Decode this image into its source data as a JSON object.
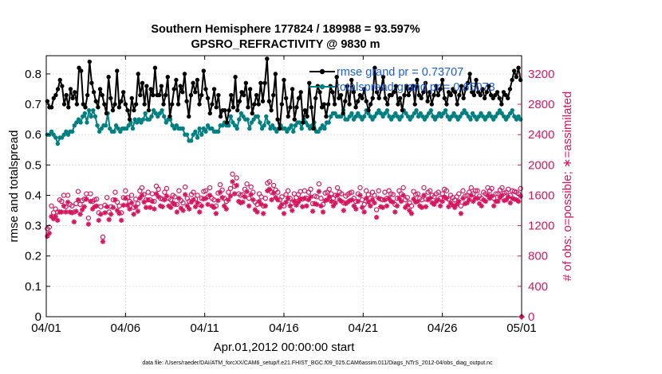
{
  "chart_data": {
    "type": "line",
    "title_line1": "Southern Hemisphere 177824 / 189988 = 93.597%",
    "title_line2": "GPSRO_REFRACTIVITY @ 9830 m",
    "xlabel": "Apr.01,2012 00:00:00 start",
    "ylabel_left": "rmse and totalspread",
    "ylabel_right": "# of obs: o=possible; ∗=assimilated",
    "footnote": "data file: /Users/raeder/DAI/ATM_forcXX/CAM6_setup/f.e21.FHIST_BGC.f09_025.CAM6assim.011/Diags_NTrS_2012-04/obs_diag_output.nc",
    "xlim": [
      0,
      30
    ],
    "ylim_left": [
      0,
      0.86
    ],
    "ylim_right": [
      0,
      3440
    ],
    "x_ticks": [
      0,
      5,
      10,
      15,
      20,
      25,
      30
    ],
    "x_tick_labels": [
      "04/01",
      "04/06",
      "04/11",
      "04/16",
      "04/21",
      "04/26",
      "05/01"
    ],
    "yleft_ticks": [
      0,
      0.1,
      0.2,
      0.3,
      0.4,
      0.5,
      0.6,
      0.7,
      0.8
    ],
    "yleft_tick_labels": [
      "0",
      "0.1",
      "0.2",
      "0.3",
      "0.4",
      "0.5",
      "0.6",
      "0.7",
      "0.8"
    ],
    "yright_ticks": [
      0,
      400,
      800,
      1200,
      1600,
      2000,
      2400,
      2800,
      3200
    ],
    "yright_tick_labels": [
      "0",
      "400",
      "800",
      "1200",
      "1600",
      "2000",
      "2400",
      "2800",
      "3200"
    ],
    "grid": true,
    "legend_position": "top-right",
    "colors": {
      "rmse": "#000000",
      "spread": "#008080",
      "obs": "#d6175f"
    },
    "rmse": {
      "legend_label": "rmse grand pr = 0.73707",
      "values": [
        0.71,
        0.69,
        0.69,
        0.72,
        0.73,
        0.75,
        0.78,
        0.76,
        0.7,
        0.73,
        0.69,
        0.75,
        0.72,
        0.74,
        0.7,
        0.82,
        0.81,
        0.7,
        0.69,
        0.73,
        0.84,
        0.77,
        0.74,
        0.71,
        0.69,
        0.75,
        0.73,
        0.7,
        0.67,
        0.79,
        0.72,
        0.68,
        0.7,
        0.81,
        0.69,
        0.71,
        0.74,
        0.7,
        0.68,
        0.65,
        0.72,
        0.68,
        0.7,
        0.8,
        0.73,
        0.77,
        0.7,
        0.76,
        0.68,
        0.75,
        0.73,
        0.82,
        0.73,
        0.73,
        0.76,
        0.7,
        0.73,
        0.79,
        0.66,
        0.7,
        0.75,
        0.78,
        0.7,
        0.76,
        0.74,
        0.8,
        0.71,
        0.66,
        0.73,
        0.77,
        0.74,
        0.78,
        0.7,
        0.73,
        0.81,
        0.75,
        0.72,
        0.67,
        0.7,
        0.75,
        0.69,
        0.73,
        0.66,
        0.68,
        0.68,
        0.64,
        0.68,
        0.73,
        0.69,
        0.79,
        0.68,
        0.71,
        0.74,
        0.73,
        0.77,
        0.69,
        0.75,
        0.67,
        0.7,
        0.73,
        0.7,
        0.77,
        0.71,
        0.77,
        0.85,
        0.71,
        0.68,
        0.73,
        0.8,
        0.65,
        0.62,
        0.7,
        0.78,
        0.72,
        0.66,
        0.69,
        0.75,
        0.65,
        0.69,
        0.72,
        0.74,
        0.64,
        0.68,
        0.66,
        0.77,
        0.69,
        0.62,
        0.72,
        0.76,
        0.74,
        0.69,
        0.7,
        0.66,
        0.7,
        0.76,
        0.74,
        0.7,
        0.79,
        0.72,
        0.73,
        0.67,
        0.71,
        0.76,
        0.7,
        0.78,
        0.74,
        0.69,
        0.71,
        0.73,
        0.72,
        0.75,
        0.71,
        0.68,
        0.7,
        0.72,
        0.82,
        0.74,
        0.72,
        0.75,
        0.79,
        0.72,
        0.7,
        0.73,
        0.73,
        0.74,
        0.76,
        0.7,
        0.72,
        0.68,
        0.73,
        0.76,
        0.73,
        0.75,
        0.76,
        0.7,
        0.78,
        0.73,
        0.72,
        0.74,
        0.77,
        0.71,
        0.74,
        0.7,
        0.73,
        0.76,
        0.73,
        0.75,
        0.78,
        0.72,
        0.7,
        0.74,
        0.73,
        0.75,
        0.74,
        0.7,
        0.73,
        0.76,
        0.72,
        0.75,
        0.77,
        0.8,
        0.74,
        0.73,
        0.78,
        0.74,
        0.73,
        0.75,
        0.72,
        0.74,
        0.76,
        0.73,
        0.72,
        0.73,
        0.74,
        0.72,
        0.7,
        0.74,
        0.73,
        0.72,
        0.75,
        0.78,
        0.81,
        0.79,
        0.82,
        0.78
      ]
    },
    "spread": {
      "legend_label": "totalspread grand pr = 0.65073",
      "values": [
        0.6,
        0.6,
        0.61,
        0.6,
        0.59,
        0.57,
        0.59,
        0.59,
        0.6,
        0.61,
        0.6,
        0.61,
        0.61,
        0.63,
        0.64,
        0.65,
        0.64,
        0.66,
        0.67,
        0.64,
        0.68,
        0.66,
        0.68,
        0.66,
        0.63,
        0.61,
        0.62,
        0.63,
        0.63,
        0.67,
        0.62,
        0.61,
        0.61,
        0.63,
        0.62,
        0.61,
        0.62,
        0.62,
        0.62,
        0.63,
        0.64,
        0.62,
        0.65,
        0.64,
        0.65,
        0.64,
        0.65,
        0.67,
        0.65,
        0.65,
        0.66,
        0.68,
        0.67,
        0.66,
        0.67,
        0.68,
        0.66,
        0.64,
        0.65,
        0.65,
        0.63,
        0.62,
        0.63,
        0.62,
        0.62,
        0.62,
        0.6,
        0.6,
        0.58,
        0.58,
        0.6,
        0.61,
        0.59,
        0.62,
        0.6,
        0.62,
        0.61,
        0.63,
        0.62,
        0.62,
        0.61,
        0.61,
        0.61,
        0.63,
        0.63,
        0.64,
        0.63,
        0.63,
        0.66,
        0.64,
        0.63,
        0.62,
        0.65,
        0.67,
        0.66,
        0.65,
        0.65,
        0.62,
        0.64,
        0.65,
        0.66,
        0.66,
        0.64,
        0.62,
        0.63,
        0.66,
        0.64,
        0.62,
        0.63,
        0.62,
        0.61,
        0.62,
        0.63,
        0.62,
        0.62,
        0.61,
        0.62,
        0.63,
        0.61,
        0.63,
        0.64,
        0.64,
        0.62,
        0.65,
        0.64,
        0.63,
        0.62,
        0.63,
        0.64,
        0.61,
        0.61,
        0.62,
        0.63,
        0.62,
        0.64,
        0.64,
        0.66,
        0.67,
        0.67,
        0.66,
        0.66,
        0.66,
        0.68,
        0.65,
        0.65,
        0.66,
        0.67,
        0.65,
        0.66,
        0.67,
        0.66,
        0.65,
        0.66,
        0.68,
        0.67,
        0.66,
        0.65,
        0.66,
        0.67,
        0.68,
        0.67,
        0.66,
        0.67,
        0.68,
        0.66,
        0.65,
        0.66,
        0.67,
        0.66,
        0.65,
        0.66,
        0.68,
        0.67,
        0.66,
        0.65,
        0.66,
        0.67,
        0.68,
        0.66,
        0.67,
        0.66,
        0.65,
        0.66,
        0.67,
        0.68,
        0.66,
        0.65,
        0.66,
        0.67,
        0.66,
        0.67,
        0.68,
        0.66,
        0.65,
        0.66,
        0.67,
        0.66,
        0.65,
        0.66,
        0.67,
        0.68,
        0.67,
        0.66,
        0.65,
        0.67,
        0.66,
        0.65,
        0.66,
        0.67,
        0.66,
        0.65,
        0.66,
        0.67,
        0.66,
        0.65,
        0.66,
        0.67,
        0.68,
        0.67,
        0.66,
        0.65,
        0.66,
        0.67,
        0.68,
        0.66,
        0.65,
        0.66,
        0.65
      ]
    },
    "possible": {
      "values": [
        1160,
        1180,
        1460,
        1370,
        1420,
        1380,
        1540,
        1520,
        1600,
        1450,
        1600,
        1480,
        1460,
        1380,
        1490,
        1650,
        1480,
        1530,
        1550,
        1620,
        1300,
        1620,
        1520,
        1540,
        1550,
        1370,
        1450,
        1050,
        1470,
        1570,
        1380,
        1450,
        1540,
        1640,
        1510,
        1460,
        1370,
        1570,
        1660,
        1570,
        1520,
        1600,
        1440,
        1550,
        1490,
        1660,
        1700,
        1610,
        1540,
        1640,
        1540,
        1620,
        1520,
        1720,
        1680,
        1560,
        1550,
        1640,
        1690,
        1560,
        1540,
        1600,
        1580,
        1480,
        1660,
        1530,
        1500,
        1710,
        1560,
        1520,
        1610,
        1640,
        1550,
        1600,
        1480,
        1560,
        1650,
        1660,
        1580,
        1700,
        1560,
        1540,
        1460,
        1630,
        1740,
        1670,
        1560,
        1520,
        1640,
        1690,
        1880,
        1720,
        1830,
        1620,
        1600,
        1610,
        1680,
        1750,
        1560,
        1710,
        1640,
        1510,
        1480,
        1620,
        1580,
        1460,
        1560,
        1760,
        1780,
        1640,
        1730,
        1670,
        1640,
        1540,
        1580,
        1460,
        1610,
        1660,
        1560,
        1500,
        1620,
        1570,
        1610,
        1650,
        1550,
        1660,
        1560,
        1640,
        1680,
        1490,
        1590,
        1580,
        1750,
        1560,
        1480,
        1630,
        1640,
        1680,
        1620,
        1560,
        1600,
        1700,
        1640,
        1620,
        1500,
        1590,
        1610,
        1630,
        1640,
        1560,
        1520,
        1620,
        1700,
        1540,
        1480,
        1660,
        1610,
        1560,
        1640,
        1600,
        1410,
        1660,
        1550,
        1540,
        1640,
        1560,
        1660,
        1620,
        1610,
        1480,
        1560,
        1660,
        1620,
        1700,
        1540,
        1570,
        1500,
        1460,
        1650,
        1610,
        1620,
        1560,
        1540,
        1700,
        1550,
        1640,
        1660,
        1600,
        1580,
        1620,
        1640,
        1560,
        1620,
        1680,
        1660,
        1550,
        1600,
        1570,
        1540,
        1580,
        1620,
        1460,
        1660,
        1590,
        1600,
        1640,
        1700,
        1620,
        1660,
        1660,
        1590,
        1560,
        1640,
        1620,
        1700,
        1660,
        1690,
        1560,
        1620,
        1620,
        1670,
        1700,
        1630,
        1640,
        1680,
        1600,
        1660,
        1650,
        1640,
        1620,
        1690
      ]
    },
    "assimilated": {
      "values": [
        1060,
        1100,
        1320,
        1290,
        1320,
        1270,
        1380,
        1380,
        1460,
        1380,
        1510,
        1380,
        1370,
        1250,
        1390,
        1540,
        1350,
        1410,
        1450,
        1550,
        1220,
        1520,
        1420,
        1450,
        1460,
        1270,
        1350,
        990,
        1370,
        1450,
        1280,
        1350,
        1440,
        1540,
        1400,
        1360,
        1270,
        1470,
        1560,
        1470,
        1420,
        1500,
        1350,
        1450,
        1390,
        1560,
        1600,
        1510,
        1440,
        1540,
        1440,
        1520,
        1420,
        1620,
        1580,
        1460,
        1450,
        1540,
        1590,
        1460,
        1440,
        1500,
        1480,
        1380,
        1560,
        1430,
        1400,
        1610,
        1460,
        1420,
        1510,
        1540,
        1450,
        1500,
        1380,
        1460,
        1550,
        1560,
        1480,
        1600,
        1460,
        1440,
        1360,
        1530,
        1640,
        1570,
        1460,
        1420,
        1540,
        1590,
        1780,
        1620,
        1730,
        1520,
        1500,
        1510,
        1580,
        1650,
        1460,
        1610,
        1540,
        1410,
        1380,
        1520,
        1480,
        1360,
        1460,
        1660,
        1680,
        1540,
        1630,
        1570,
        1540,
        1440,
        1480,
        1360,
        1510,
        1560,
        1460,
        1400,
        1520,
        1470,
        1510,
        1550,
        1450,
        1560,
        1460,
        1540,
        1580,
        1390,
        1490,
        1480,
        1650,
        1460,
        1380,
        1530,
        1540,
        1580,
        1520,
        1460,
        1500,
        1600,
        1540,
        1520,
        1400,
        1490,
        1510,
        1530,
        1540,
        1460,
        1420,
        1520,
        1600,
        1440,
        1380,
        1560,
        1510,
        1460,
        1540,
        1500,
        1310,
        1560,
        1450,
        1440,
        1540,
        1460,
        1560,
        1520,
        1510,
        1380,
        1460,
        1560,
        1520,
        1600,
        1440,
        1470,
        1400,
        1360,
        1550,
        1510,
        1520,
        1460,
        1440,
        1600,
        1450,
        1540,
        1560,
        1500,
        1480,
        1520,
        1540,
        1460,
        1520,
        1580,
        1560,
        1450,
        1500,
        1470,
        1440,
        1480,
        1520,
        1360,
        1560,
        1490,
        1500,
        1540,
        1600,
        1520,
        1560,
        1560,
        1490,
        1460,
        1540,
        1520,
        1600,
        1560,
        1590,
        1460,
        1520,
        1520,
        1570,
        1600,
        1530,
        1540,
        1580,
        1500,
        1560,
        1550,
        1540,
        1520,
        1590
      ]
    }
  }
}
